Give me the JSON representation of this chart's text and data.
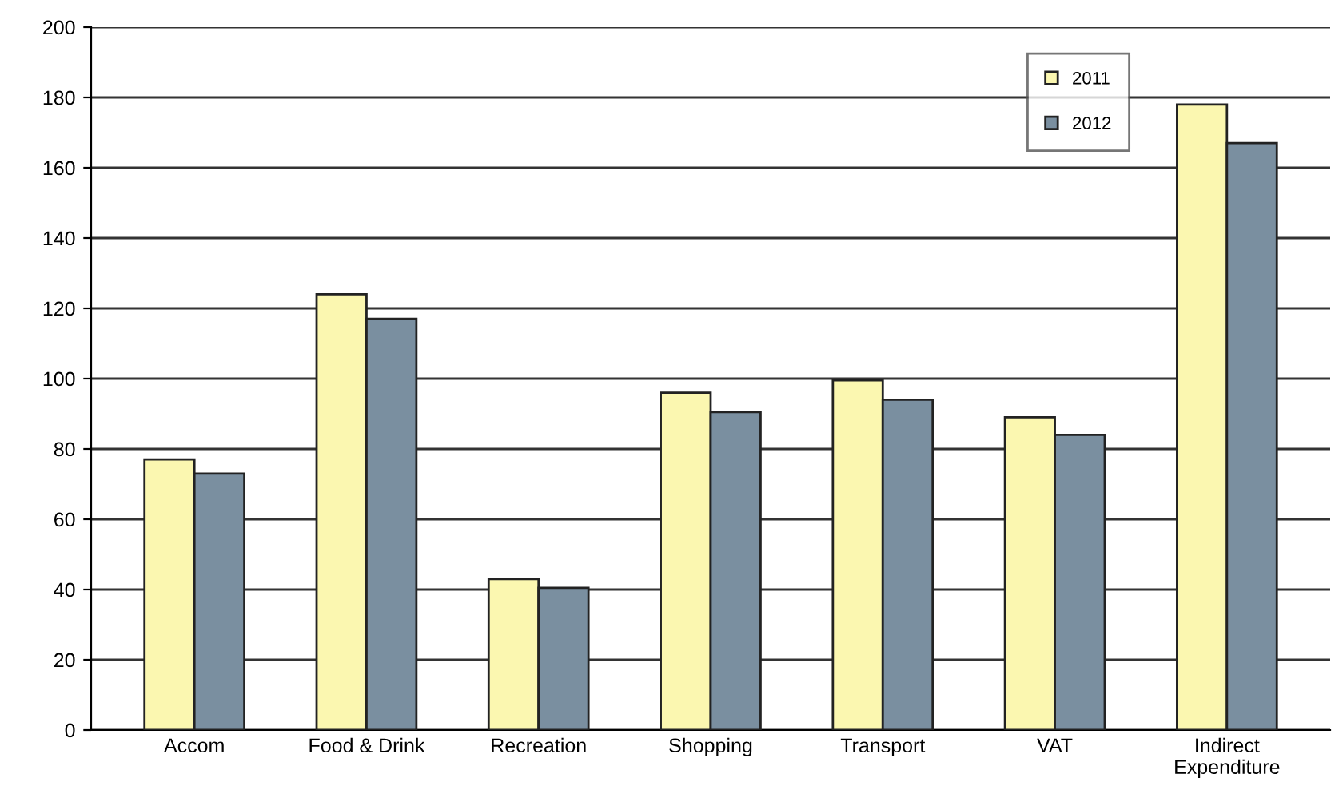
{
  "chart_data": {
    "type": "bar",
    "categories": [
      "Accom",
      "Food & Drink",
      "Recreation",
      "Shopping",
      "Transport",
      "VAT",
      "Indirect\nExpenditure"
    ],
    "series": [
      {
        "name": "2011",
        "color": "#fbf7b0",
        "values": [
          77,
          124,
          43,
          96,
          99.5,
          89,
          178
        ]
      },
      {
        "name": "2012",
        "color": "#7a8fa0",
        "values": [
          73,
          117,
          40.5,
          90.5,
          94,
          84,
          167
        ]
      }
    ],
    "ylim": [
      0,
      200
    ],
    "yticks": [
      0,
      20,
      40,
      60,
      80,
      100,
      120,
      140,
      160,
      180,
      200
    ],
    "grid": "y",
    "legend": "top right"
  }
}
